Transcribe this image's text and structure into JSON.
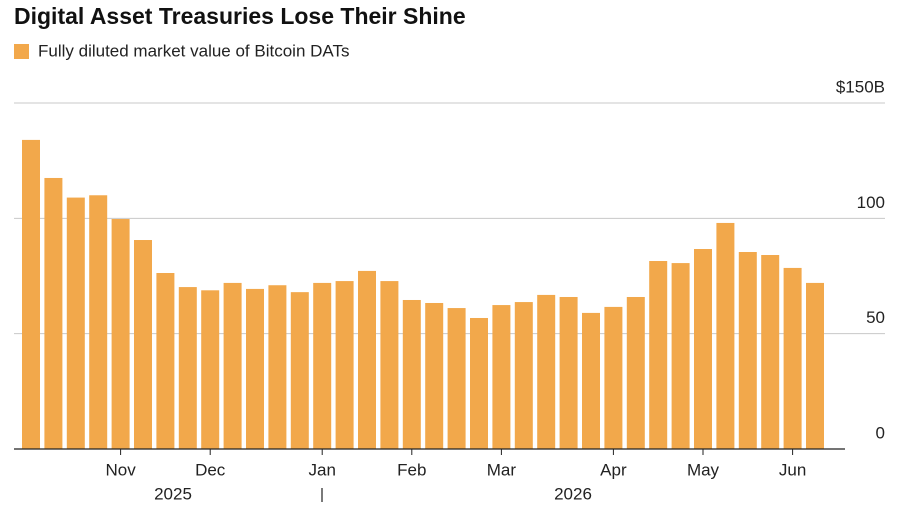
{
  "chart_data": {
    "type": "bar",
    "title": "Digital Asset Treasuries Lose Their Shine",
    "series": [
      {
        "name": "Fully diluted market value of Bitcoin DATs",
        "color": "#f2a84b",
        "values": [
          134,
          117.5,
          109,
          110,
          99.7,
          90.6,
          76.3,
          70.2,
          68.8,
          72,
          69.4,
          71,
          68,
          72,
          72.8,
          77.2,
          72.8,
          64.6,
          63.3,
          61.1,
          56.8,
          62.4,
          63.7,
          66.8,
          65.9,
          59,
          61.6,
          65.9,
          81.5,
          80.6,
          86.7,
          98,
          85.4,
          84.1,
          78.5,
          72
        ]
      }
    ],
    "categories": [
      null,
      null,
      null,
      null,
      "Nov",
      null,
      null,
      null,
      "Dec",
      null,
      null,
      null,
      null,
      "Jan",
      null,
      null,
      null,
      "Feb",
      null,
      null,
      null,
      "Mar",
      null,
      null,
      null,
      null,
      "Apr",
      null,
      null,
      null,
      "May",
      null,
      null,
      null,
      "Jun",
      null
    ],
    "year_labels": [
      "2025",
      "2026"
    ],
    "ylim": [
      0,
      150
    ],
    "yticks": [
      0,
      50,
      100,
      {
        "value": 150,
        "label": "$150B"
      }
    ],
    "grid": true,
    "legend": "top-left"
  }
}
